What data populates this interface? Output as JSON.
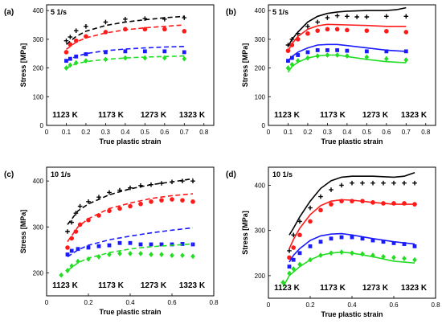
{
  "colors": {
    "1123 K": "#000000",
    "1173 K": "#ff1a1a",
    "1273 K": "#1a1aff",
    "1323 K": "#22dd22"
  },
  "chart_data": [
    {
      "type": "scatter",
      "panel_label": "(a)",
      "rate_label": "5 1/s",
      "xlabel": "True plastic strain",
      "ylabel": "Stress [MPa]",
      "xlim": [
        0,
        0.85
      ],
      "ylim": [
        0,
        420
      ],
      "xticks": [
        0,
        0.1,
        0.2,
        0.3,
        0.4,
        0.5,
        0.6,
        0.7,
        0.8
      ],
      "yticks": [
        0,
        100,
        200,
        300,
        400
      ],
      "grid": false,
      "model_style": "dashed",
      "legend": [
        "1123 K",
        "1173 K",
        "1273 K",
        "1323 K"
      ],
      "series": [
        {
          "name": "1123 K",
          "marker": "plus",
          "x": [
            0.1,
            0.12,
            0.15,
            0.2,
            0.3,
            0.4,
            0.5,
            0.6,
            0.7
          ],
          "y": [
            295,
            308,
            330,
            345,
            360,
            370,
            372,
            370,
            375
          ],
          "model_x": [
            0.1,
            0.15,
            0.2,
            0.3,
            0.4,
            0.5,
            0.6,
            0.7
          ],
          "model_y": [
            282,
            310,
            328,
            348,
            360,
            368,
            375,
            380
          ]
        },
        {
          "name": "1173 K",
          "marker": "circle",
          "x": [
            0.1,
            0.12,
            0.15,
            0.2,
            0.3,
            0.4,
            0.5,
            0.6,
            0.7
          ],
          "y": [
            255,
            282,
            295,
            310,
            325,
            335,
            335,
            335,
            328
          ],
          "model_x": [
            0.1,
            0.15,
            0.2,
            0.3,
            0.4,
            0.5,
            0.6,
            0.7
          ],
          "model_y": [
            265,
            290,
            305,
            322,
            333,
            340,
            345,
            350
          ]
        },
        {
          "name": "1273 K",
          "marker": "square",
          "x": [
            0.1,
            0.12,
            0.15,
            0.2,
            0.3,
            0.4,
            0.5,
            0.6,
            0.7
          ],
          "y": [
            225,
            232,
            240,
            248,
            255,
            258,
            258,
            258,
            255
          ],
          "model_x": [
            0.1,
            0.15,
            0.2,
            0.3,
            0.4,
            0.5,
            0.6,
            0.7
          ],
          "model_y": [
            225,
            240,
            250,
            260,
            266,
            270,
            273,
            275
          ]
        },
        {
          "name": "1323 K",
          "marker": "diamond",
          "x": [
            0.1,
            0.12,
            0.15,
            0.2,
            0.3,
            0.4,
            0.5,
            0.6,
            0.7
          ],
          "y": [
            200,
            210,
            218,
            225,
            230,
            235,
            235,
            235,
            232
          ],
          "model_x": [
            0.1,
            0.15,
            0.2,
            0.3,
            0.4,
            0.5,
            0.6,
            0.7
          ],
          "model_y": [
            200,
            215,
            222,
            230,
            235,
            238,
            240,
            242
          ]
        }
      ]
    },
    {
      "type": "scatter",
      "panel_label": "(b)",
      "rate_label": "5 1/s",
      "xlabel": "True plastic strain",
      "ylabel": "Stress [MPa]",
      "xlim": [
        0,
        0.85
      ],
      "ylim": [
        0,
        420
      ],
      "xticks": [
        0,
        0.1,
        0.2,
        0.3,
        0.4,
        0.5,
        0.6,
        0.7,
        0.8
      ],
      "yticks": [
        0,
        100,
        200,
        300,
        400
      ],
      "grid": false,
      "model_style": "solid",
      "legend": [
        "1123 K",
        "1173 K",
        "1273 K",
        "1323 K"
      ],
      "series": [
        {
          "name": "1123 K",
          "marker": "plus",
          "x": [
            0.1,
            0.12,
            0.15,
            0.2,
            0.25,
            0.3,
            0.35,
            0.4,
            0.45,
            0.5,
            0.6,
            0.7
          ],
          "y": [
            280,
            300,
            320,
            345,
            360,
            375,
            382,
            380,
            378,
            378,
            380,
            380
          ],
          "model_x": [
            0.1,
            0.12,
            0.15,
            0.2,
            0.25,
            0.3,
            0.35,
            0.4,
            0.5,
            0.6,
            0.65,
            0.7
          ],
          "model_y": [
            275,
            300,
            325,
            360,
            380,
            390,
            395,
            398,
            400,
            400,
            403,
            410
          ]
        },
        {
          "name": "1173 K",
          "marker": "circle",
          "x": [
            0.1,
            0.12,
            0.15,
            0.2,
            0.25,
            0.3,
            0.35,
            0.4,
            0.5,
            0.6,
            0.7
          ],
          "y": [
            260,
            280,
            300,
            320,
            330,
            335,
            335,
            332,
            330,
            328,
            325
          ],
          "model_x": [
            0.1,
            0.12,
            0.15,
            0.2,
            0.25,
            0.3,
            0.4,
            0.5,
            0.6,
            0.7
          ],
          "model_y": [
            260,
            285,
            310,
            335,
            347,
            352,
            350,
            348,
            345,
            345
          ]
        },
        {
          "name": "1273 K",
          "marker": "square",
          "x": [
            0.1,
            0.12,
            0.15,
            0.2,
            0.25,
            0.3,
            0.35,
            0.4,
            0.5,
            0.6,
            0.7
          ],
          "y": [
            225,
            235,
            245,
            255,
            262,
            262,
            262,
            260,
            258,
            258,
            258
          ],
          "model_x": [
            0.1,
            0.12,
            0.15,
            0.2,
            0.25,
            0.3,
            0.35,
            0.4,
            0.5,
            0.6,
            0.7
          ],
          "model_y": [
            225,
            240,
            255,
            270,
            280,
            282,
            282,
            278,
            270,
            262,
            258
          ]
        },
        {
          "name": "1323 K",
          "marker": "diamond",
          "x": [
            0.1,
            0.12,
            0.15,
            0.2,
            0.25,
            0.3,
            0.35,
            0.4,
            0.5,
            0.6,
            0.7
          ],
          "y": [
            200,
            212,
            225,
            235,
            242,
            245,
            245,
            242,
            238,
            232,
            228
          ],
          "model_x": [
            0.1,
            0.12,
            0.15,
            0.2,
            0.25,
            0.3,
            0.35,
            0.4,
            0.5,
            0.6,
            0.7
          ],
          "model_y": [
            185,
            205,
            220,
            235,
            242,
            245,
            245,
            240,
            230,
            222,
            218
          ]
        }
      ]
    },
    {
      "type": "scatter",
      "panel_label": "(c)",
      "rate_label": "10 1/s",
      "xlabel": "True plastic strain",
      "ylabel": "Stress [MPa]",
      "xlim": [
        0,
        0.8
      ],
      "ylim": [
        150,
        430
      ],
      "xticks": [
        0,
        0.2,
        0.4,
        0.6,
        0.8
      ],
      "yticks": [
        200,
        300,
        400
      ],
      "grid": false,
      "model_style": "dashed",
      "legend": [
        "1123 K",
        "1173 K",
        "1273 K",
        "1323 K"
      ],
      "series": [
        {
          "name": "1123 K",
          "marker": "plus",
          "x": [
            0.1,
            0.12,
            0.14,
            0.16,
            0.2,
            0.25,
            0.3,
            0.35,
            0.4,
            0.45,
            0.5,
            0.55,
            0.6,
            0.65,
            0.7
          ],
          "y": [
            290,
            310,
            330,
            345,
            355,
            365,
            375,
            380,
            385,
            390,
            392,
            395,
            398,
            400,
            400
          ],
          "model_x": [
            0.1,
            0.15,
            0.2,
            0.3,
            0.4,
            0.5,
            0.6,
            0.7
          ],
          "model_y": [
            305,
            335,
            350,
            370,
            383,
            392,
            398,
            405
          ]
        },
        {
          "name": "1173 K",
          "marker": "circle",
          "x": [
            0.1,
            0.12,
            0.14,
            0.16,
            0.2,
            0.25,
            0.3,
            0.35,
            0.4,
            0.45,
            0.5,
            0.55,
            0.6,
            0.65,
            0.7
          ],
          "y": [
            255,
            275,
            290,
            305,
            315,
            325,
            335,
            340,
            345,
            350,
            355,
            358,
            360,
            358,
            355
          ],
          "model_x": [
            0.1,
            0.15,
            0.2,
            0.3,
            0.4,
            0.5,
            0.6,
            0.7
          ],
          "model_y": [
            268,
            300,
            318,
            340,
            352,
            362,
            368,
            372
          ]
        },
        {
          "name": "1273 K",
          "marker": "square",
          "x": [
            0.1,
            0.12,
            0.15,
            0.2,
            0.25,
            0.3,
            0.35,
            0.4,
            0.45,
            0.5,
            0.55,
            0.6,
            0.65,
            0.7
          ],
          "y": [
            240,
            248,
            252,
            255,
            258,
            260,
            265,
            265,
            262,
            262,
            262,
            262,
            263,
            262
          ],
          "model_x": [
            0.1,
            0.15,
            0.2,
            0.3,
            0.4,
            0.5,
            0.6,
            0.7
          ],
          "model_y": [
            235,
            250,
            260,
            272,
            280,
            287,
            293,
            298
          ]
        },
        {
          "name": "1323 K",
          "marker": "diamond",
          "x": [
            0.07,
            0.1,
            0.12,
            0.15,
            0.2,
            0.25,
            0.3,
            0.35,
            0.4,
            0.45,
            0.5,
            0.55,
            0.6,
            0.65,
            0.7
          ],
          "y": [
            195,
            205,
            215,
            225,
            230,
            235,
            240,
            242,
            242,
            242,
            240,
            240,
            238,
            238,
            236
          ],
          "model_x": [
            0.1,
            0.15,
            0.2,
            0.3,
            0.4,
            0.5,
            0.6,
            0.7
          ],
          "model_y": [
            205,
            222,
            232,
            244,
            252,
            257,
            260,
            263
          ]
        }
      ]
    },
    {
      "type": "scatter",
      "panel_label": "(d)",
      "rate_label": "10 1/s",
      "xlabel": "True plastic strain",
      "ylabel": "Stress [MPa]",
      "xlim": [
        0,
        0.8
      ],
      "ylim": [
        150,
        440
      ],
      "xticks": [
        0,
        0.2,
        0.4,
        0.6,
        0.8
      ],
      "yticks": [
        200,
        300,
        400
      ],
      "grid": false,
      "model_style": "solid",
      "legend": [
        "1123 K",
        "1173 K",
        "1273 K",
        "1323 K"
      ],
      "series": [
        {
          "name": "1123 K",
          "marker": "plus",
          "x": [
            0.1,
            0.12,
            0.15,
            0.2,
            0.25,
            0.3,
            0.35,
            0.4,
            0.45,
            0.5,
            0.55,
            0.6,
            0.65,
            0.7
          ],
          "y": [
            255,
            290,
            320,
            350,
            375,
            390,
            400,
            405,
            405,
            405,
            405,
            405,
            405,
            405
          ],
          "model_x": [
            0.1,
            0.12,
            0.15,
            0.2,
            0.25,
            0.3,
            0.35,
            0.4,
            0.5,
            0.6,
            0.65,
            0.7
          ],
          "model_y": [
            290,
            305,
            330,
            365,
            393,
            410,
            418,
            420,
            420,
            418,
            420,
            428
          ]
        },
        {
          "name": "1173 K",
          "marker": "circle",
          "x": [
            0.1,
            0.12,
            0.15,
            0.2,
            0.25,
            0.3,
            0.35,
            0.4,
            0.45,
            0.5,
            0.55,
            0.6,
            0.65,
            0.7
          ],
          "y": [
            240,
            262,
            290,
            320,
            345,
            358,
            365,
            365,
            365,
            362,
            360,
            360,
            360,
            358
          ],
          "model_x": [
            0.1,
            0.12,
            0.15,
            0.2,
            0.25,
            0.3,
            0.35,
            0.4,
            0.5,
            0.6,
            0.7
          ],
          "model_y": [
            260,
            280,
            305,
            335,
            355,
            365,
            368,
            367,
            362,
            358,
            358
          ]
        },
        {
          "name": "1273 K",
          "marker": "square",
          "x": [
            0.1,
            0.12,
            0.15,
            0.2,
            0.25,
            0.3,
            0.35,
            0.4,
            0.45,
            0.5,
            0.55,
            0.6,
            0.65,
            0.7
          ],
          "y": [
            220,
            235,
            250,
            265,
            275,
            282,
            285,
            285,
            282,
            278,
            275,
            272,
            270,
            265
          ],
          "model_x": [
            0.1,
            0.12,
            0.15,
            0.2,
            0.25,
            0.3,
            0.35,
            0.4,
            0.5,
            0.6,
            0.7
          ],
          "model_y": [
            230,
            245,
            260,
            278,
            288,
            292,
            293,
            290,
            282,
            275,
            270
          ]
        },
        {
          "name": "1323 K",
          "marker": "diamond",
          "x": [
            0.07,
            0.1,
            0.12,
            0.15,
            0.2,
            0.25,
            0.3,
            0.35,
            0.4,
            0.45,
            0.5,
            0.55,
            0.6,
            0.65,
            0.7
          ],
          "y": [
            185,
            205,
            215,
            225,
            235,
            245,
            250,
            252,
            250,
            248,
            245,
            242,
            240,
            238,
            235
          ],
          "model_x": [
            0.07,
            0.1,
            0.15,
            0.2,
            0.25,
            0.3,
            0.35,
            0.4,
            0.5,
            0.6,
            0.7
          ],
          "model_y": [
            175,
            200,
            220,
            235,
            245,
            250,
            252,
            250,
            242,
            232,
            228
          ]
        }
      ]
    }
  ]
}
